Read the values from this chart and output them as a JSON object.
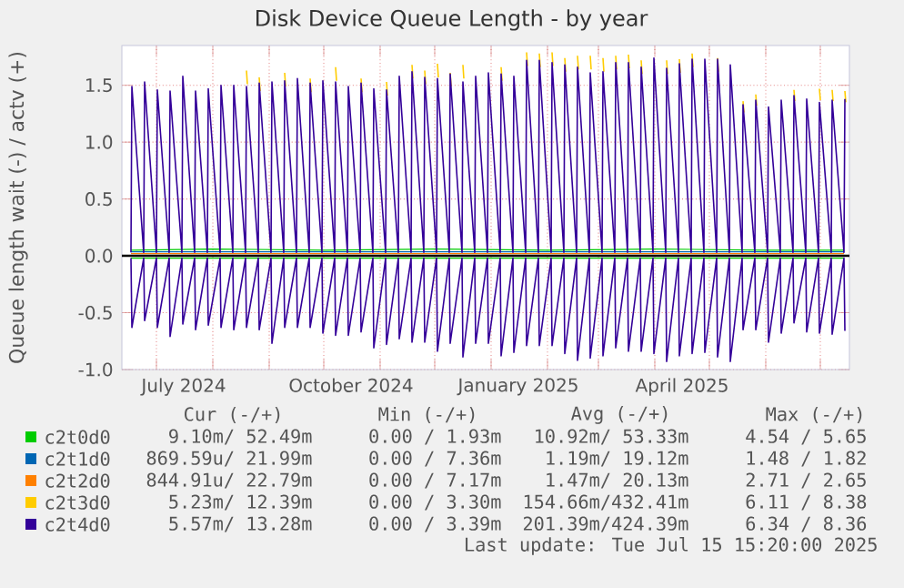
{
  "chart_data": {
    "type": "line",
    "title": "Disk Device Queue Length - by year",
    "ylabel": "Queue length wait (-) / actv (+)",
    "xlim": [
      "2024-06-12",
      "2025-07-17"
    ],
    "ylim": [
      -1.0,
      1.85
    ],
    "yticks": [
      {
        "value": -1.0,
        "label": "-1.0"
      },
      {
        "value": -0.5,
        "label": "-0.5"
      },
      {
        "value": 0.0,
        "label": "0.0"
      },
      {
        "value": 0.5,
        "label": "0.5"
      },
      {
        "value": 1.0,
        "label": "1.0"
      },
      {
        "value": 1.5,
        "label": "1.5"
      }
    ],
    "xticks": [
      {
        "value": "2024-07-01",
        "label": null
      },
      {
        "value": "2024-08-01",
        "label": null
      },
      {
        "value": "2024-09-01",
        "label": null
      },
      {
        "value": "2024-10-01",
        "label": null
      },
      {
        "value": "2024-11-01",
        "label": null
      },
      {
        "value": "2024-12-01",
        "label": null
      },
      {
        "value": "2025-01-01",
        "label": null
      },
      {
        "value": "2025-02-01",
        "label": null
      },
      {
        "value": "2025-03-01",
        "label": null
      },
      {
        "value": "2025-04-01",
        "label": null
      },
      {
        "value": "2025-05-01",
        "label": null
      },
      {
        "value": "2025-06-01",
        "label": null
      },
      {
        "value": "2025-07-01",
        "label": null
      },
      {
        "value": "2024-07-16",
        "label": "July 2024"
      },
      {
        "value": "2024-10-16",
        "label": "October 2024"
      },
      {
        "value": "2025-01-16",
        "label": "January 2025"
      },
      {
        "value": "2025-04-16",
        "label": "April 2025"
      }
    ],
    "grid": true,
    "legend": "bottom",
    "ref_lines": [
      {
        "axis": "y",
        "value": 0.0,
        "color": "#000000"
      }
    ],
    "annotations": [
      "Cur (-/+)",
      "Min (-/+)",
      "Avg (-/+)",
      "Max (-/+)",
      "9.10m/ 52.49m",
      "0.00 / 1.93m",
      "10.92m/ 53.33m",
      "4.54 / 5.65",
      "869.59u/ 21.99m",
      "0.00 / 7.36m",
      "1.19m/ 19.12m",
      "1.48 / 1.82",
      "844.91u/ 22.79m",
      "0.00 / 7.17m",
      "1.47m/ 20.13m",
      "2.71 / 2.65",
      "5.23m/ 12.39m",
      "0.00 / 3.30m",
      "154.66m/432.41m",
      "6.11 / 8.38",
      "5.57m/ 13.28m",
      "0.00 / 3.39m",
      "201.39m/424.39m",
      "6.34 / 8.36",
      "Last update: Tue Jul 15 15:20:00 2025"
    ],
    "x": [
      "2024-06-17",
      "2024-06-17T12:00",
      "2024-06-24",
      "2024-06-24T12:00",
      "2024-07-01",
      "2024-07-01T12:00",
      "2024-07-08",
      "2024-07-08T12:00",
      "2024-07-15",
      "2024-07-15T12:00",
      "2024-07-22",
      "2024-07-22T12:00",
      "2024-07-29",
      "2024-07-29T12:00",
      "2024-08-05",
      "2024-08-05T12:00",
      "2024-08-12",
      "2024-08-12T12:00",
      "2024-08-19",
      "2024-08-19T12:00",
      "2024-08-26",
      "2024-08-26T12:00",
      "2024-09-02",
      "2024-09-02T12:00",
      "2024-09-09",
      "2024-09-09T12:00",
      "2024-09-16",
      "2024-09-16T12:00",
      "2024-09-23",
      "2024-09-23T12:00",
      "2024-09-30",
      "2024-09-30T12:00",
      "2024-10-07",
      "2024-10-07T12:00",
      "2024-10-14",
      "2024-10-14T12:00",
      "2024-10-21",
      "2024-10-21T12:00",
      "2024-10-28",
      "2024-10-28T12:00",
      "2024-11-04",
      "2024-11-04T12:00",
      "2024-11-11",
      "2024-11-11T12:00",
      "2024-11-18",
      "2024-11-18T12:00",
      "2024-11-25",
      "2024-11-25T12:00",
      "2024-12-02",
      "2024-12-02T12:00",
      "2024-12-09",
      "2024-12-09T12:00",
      "2024-12-16",
      "2024-12-16T12:00",
      "2024-12-23",
      "2024-12-23T12:00",
      "2024-12-30",
      "2024-12-30T12:00",
      "2025-01-06",
      "2025-01-06T12:00",
      "2025-01-13",
      "2025-01-13T12:00",
      "2025-01-20",
      "2025-01-20T12:00",
      "2025-01-27",
      "2025-01-27T12:00",
      "2025-02-03",
      "2025-02-03T12:00",
      "2025-02-10",
      "2025-02-10T12:00",
      "2025-02-17",
      "2025-02-17T12:00",
      "2025-02-24",
      "2025-02-24T12:00",
      "2025-03-03",
      "2025-03-03T12:00",
      "2025-03-10",
      "2025-03-10T12:00",
      "2025-03-17",
      "2025-03-17T12:00",
      "2025-03-24",
      "2025-03-24T12:00",
      "2025-03-31",
      "2025-03-31T12:00",
      "2025-04-07",
      "2025-04-07T12:00",
      "2025-04-14",
      "2025-04-14T12:00",
      "2025-04-21",
      "2025-04-21T12:00",
      "2025-04-28",
      "2025-04-28T12:00",
      "2025-05-05",
      "2025-05-05T12:00",
      "2025-05-12",
      "2025-05-12T12:00",
      "2025-05-19",
      "2025-05-19T12:00",
      "2025-05-26",
      "2025-05-26T12:00",
      "2025-06-02",
      "2025-06-02T12:00",
      "2025-06-09",
      "2025-06-09T12:00",
      "2025-06-16",
      "2025-06-16T12:00",
      "2025-06-23",
      "2025-06-23T12:00",
      "2025-06-30",
      "2025-06-30T12:00",
      "2025-07-07",
      "2025-07-07T12:00",
      "2025-07-14",
      "2025-07-14T12:00"
    ],
    "series": [
      {
        "name": "c2t0d0",
        "color": "#00cc00",
        "x": [
          "2024-06-17",
          "2024-08-01",
          "2024-10-01",
          "2024-12-01",
          "2025-02-01",
          "2025-04-01",
          "2025-06-01",
          "2025-07-14"
        ],
        "values": [
          0.05,
          0.06,
          0.05,
          0.06,
          0.05,
          0.06,
          0.05,
          0.05
        ]
      },
      {
        "color": "#00cc00",
        "x": [
          "2024-06-17",
          "2024-08-01",
          "2024-10-01",
          "2024-12-01",
          "2025-02-01",
          "2025-04-01",
          "2025-06-01",
          "2025-07-14"
        ],
        "values": [
          -0.02,
          -0.02,
          -0.02,
          -0.02,
          -0.02,
          -0.02,
          -0.02,
          -0.02
        ]
      },
      {
        "name": "c2t1d0",
        "color": "#0066b3",
        "x": [
          "2024-06-17",
          "2025-07-14"
        ],
        "values": [
          0.035,
          0.035
        ]
      },
      {
        "name": "c2t2d0",
        "color": "#ff8000",
        "x": [
          "2024-06-17",
          "2025-07-14"
        ],
        "values": [
          0.02,
          0.02
        ]
      },
      {
        "name": "c2t3d0",
        "color": "#ffcc00",
        "x": [
          "2024-08-19T12:00",
          "2024-08-20",
          "2024-08-20T06:00",
          "2024-08-26T12:00",
          "2024-08-27",
          "2024-08-27T06:00",
          "2024-09-09T12:00",
          "2024-09-10",
          "2024-09-10T06:00",
          "2024-09-23T12:00",
          "2024-09-24",
          "2024-09-24T06:00",
          "2024-10-07T12:00",
          "2024-10-08",
          "2024-10-08T06:00",
          "2024-10-21T12:00",
          "2024-10-22",
          "2024-10-22T06:00",
          "2024-11-04T12:00",
          "2024-11-05",
          "2024-11-05T06:00",
          "2024-11-18T12:00",
          "2024-11-19",
          "2024-11-19T06:00",
          "2024-11-25T12:00",
          "2024-11-26",
          "2024-11-26T06:00",
          "2024-12-02T12:00",
          "2024-12-03",
          "2024-12-03T06:00",
          "2024-12-09T12:00",
          "2024-12-10",
          "2024-12-10T06:00",
          "2024-12-16T12:00",
          "2024-12-17",
          "2024-12-17T06:00",
          "2025-01-06T12:00",
          "2025-01-07",
          "2025-01-07T06:00",
          "2025-01-20T12:00",
          "2025-01-21",
          "2025-01-21T06:00",
          "2025-01-27T12:00",
          "2025-01-28",
          "2025-01-28T06:00",
          "2025-02-03T12:00",
          "2025-02-04",
          "2025-02-04T06:00",
          "2025-02-10T12:00",
          "2025-02-11",
          "2025-02-11T06:00",
          "2025-02-17T12:00",
          "2025-02-18",
          "2025-02-18T06:00",
          "2025-02-24T12:00",
          "2025-02-25",
          "2025-02-25T06:00",
          "2025-03-03T12:00",
          "2025-03-04",
          "2025-03-04T06:00",
          "2025-03-10T12:00",
          "2025-03-11",
          "2025-03-11T06:00",
          "2025-03-17T12:00",
          "2025-03-18",
          "2025-03-18T06:00",
          "2025-03-24T12:00",
          "2025-03-25",
          "2025-03-25T06:00",
          "2025-04-07T12:00",
          "2025-04-08",
          "2025-04-08T06:00",
          "2025-04-14T12:00",
          "2025-04-15",
          "2025-04-15T06:00",
          "2025-04-21T12:00",
          "2025-04-22",
          "2025-04-22T06:00",
          "2025-05-05T12:00",
          "2025-05-06",
          "2025-05-06T06:00",
          "2025-05-19T12:00",
          "2025-05-20",
          "2025-05-20T06:00",
          "2025-05-26T12:00",
          "2025-05-27",
          "2025-05-27T06:00",
          "2025-06-16T12:00",
          "2025-06-17",
          "2025-06-17T06:00",
          "2025-06-30T12:00",
          "2025-07-01",
          "2025-07-01T06:00",
          "2025-07-07T12:00",
          "2025-07-08",
          "2025-07-08T06:00",
          "2025-07-14T12:00",
          "2025-07-15"
        ],
        "values": [
          1.63,
          1.51,
          null,
          1.57,
          1.45,
          null,
          1.61,
          1.49,
          null,
          1.56,
          1.44,
          null,
          1.66,
          1.54,
          null,
          1.56,
          1.44,
          null,
          1.53,
          1.41,
          null,
          1.68,
          1.56,
          null,
          1.63,
          1.51,
          null,
          1.69,
          1.57,
          null,
          1.61,
          1.49,
          null,
          1.68,
          1.56,
          null,
          1.66,
          1.54,
          null,
          1.79,
          1.67,
          null,
          1.78,
          1.66,
          null,
          1.79,
          1.67,
          null,
          1.74,
          1.62,
          null,
          1.76,
          1.64,
          null,
          1.76,
          1.64,
          null,
          1.74,
          1.62,
          null,
          1.76,
          1.64,
          null,
          1.77,
          1.65,
          null,
          1.72,
          1.6,
          null,
          1.72,
          1.6,
          null,
          1.73,
          1.61,
          null,
          1.78,
          1.66,
          null,
          1.74,
          1.62,
          null,
          1.36,
          1.26,
          null,
          1.42,
          1.32,
          null,
          1.46,
          1.36,
          null,
          1.47,
          1.37,
          null,
          1.46,
          1.36,
          null,
          1.45,
          1.35
        ]
      },
      {
        "name": "c2t4d0",
        "color": "#330099",
        "values": [
          0.03,
          1.49,
          0.03,
          1.53,
          0.03,
          1.46,
          0.03,
          1.45,
          0.03,
          1.58,
          0.03,
          1.45,
          0.03,
          1.47,
          0.03,
          1.5,
          0.03,
          1.5,
          0.03,
          1.49,
          0.03,
          1.52,
          0.03,
          1.53,
          0.03,
          1.54,
          0.03,
          1.56,
          0.03,
          1.52,
          0.03,
          1.54,
          0.03,
          1.53,
          0.03,
          1.49,
          0.03,
          1.52,
          0.03,
          1.47,
          0.03,
          1.46,
          0.03,
          1.58,
          0.03,
          1.62,
          0.03,
          1.57,
          0.03,
          1.56,
          0.03,
          1.6,
          0.03,
          1.53,
          0.03,
          1.58,
          0.03,
          1.61,
          0.03,
          1.6,
          0.03,
          1.58,
          0.03,
          1.72,
          0.03,
          1.72,
          0.03,
          1.7,
          0.03,
          1.68,
          0.03,
          1.66,
          0.03,
          1.61,
          0.03,
          1.62,
          0.03,
          1.7,
          0.03,
          1.7,
          0.03,
          1.66,
          0.03,
          1.74,
          0.03,
          1.65,
          0.03,
          1.69,
          0.03,
          1.73,
          0.03,
          1.73,
          0.03,
          1.73,
          0.03,
          1.68,
          0.03,
          1.33,
          0.03,
          1.37,
          0.03,
          1.31,
          0.03,
          1.37,
          0.03,
          1.41,
          0.03,
          1.38,
          0.03,
          1.35,
          0.03,
          1.37,
          0.03,
          1.38
        ]
      },
      {
        "color": "#330099",
        "values": [
          -0.02,
          -0.63,
          -0.02,
          -0.57,
          -0.02,
          -0.63,
          -0.02,
          -0.71,
          -0.02,
          -0.6,
          -0.02,
          -0.65,
          -0.02,
          -0.61,
          -0.02,
          -0.63,
          -0.02,
          -0.65,
          -0.02,
          -0.63,
          -0.02,
          -0.65,
          -0.02,
          -0.77,
          -0.02,
          -0.63,
          -0.02,
          -0.63,
          -0.02,
          -0.63,
          -0.02,
          -0.68,
          -0.02,
          -0.7,
          -0.02,
          -0.7,
          -0.02,
          -0.67,
          -0.02,
          -0.81,
          -0.02,
          -0.78,
          -0.02,
          -0.73,
          -0.02,
          -0.76,
          -0.02,
          -0.76,
          -0.02,
          -0.84,
          -0.02,
          -0.77,
          -0.02,
          -0.89,
          -0.02,
          -0.77,
          -0.02,
          -0.77,
          -0.02,
          -0.88,
          -0.02,
          -0.85,
          -0.02,
          -0.79,
          -0.02,
          -0.79,
          -0.02,
          -0.79,
          -0.02,
          -0.86,
          -0.02,
          -0.92,
          -0.02,
          -0.9,
          -0.02,
          -0.88,
          -0.02,
          -0.81,
          -0.02,
          -0.84,
          -0.02,
          -0.84,
          -0.02,
          -0.86,
          -0.02,
          -0.93,
          -0.02,
          -0.88,
          -0.02,
          -0.86,
          -0.02,
          -0.85,
          -0.02,
          -0.89,
          -0.02,
          -0.93,
          -0.02,
          -0.65,
          -0.02,
          -0.65,
          -0.02,
          -0.76,
          -0.02,
          -0.68,
          -0.02,
          -0.59,
          -0.02,
          -0.67,
          -0.02,
          -0.68,
          -0.02,
          -0.69,
          -0.02,
          -0.66
        ]
      }
    ]
  }
}
